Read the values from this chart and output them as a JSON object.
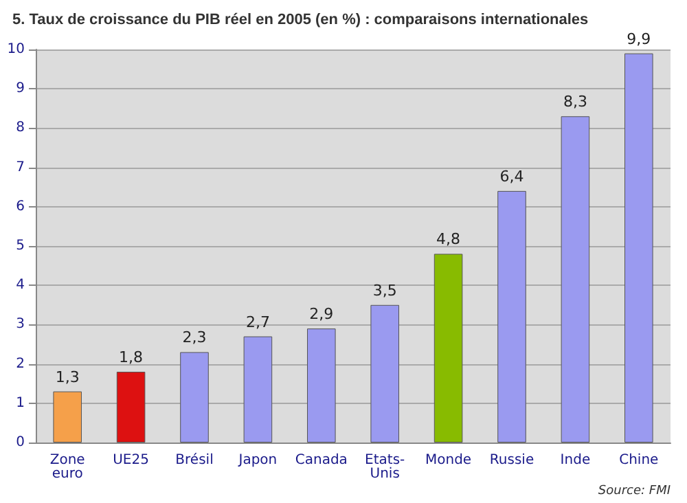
{
  "chart_data": {
    "type": "bar",
    "title": "5. Taux de croissance du PIB réel en 2005 (en %) : comparaisons internationales",
    "categories": [
      "Zone euro",
      "UE25",
      "Brésil",
      "Japon",
      "Canada",
      "Etats-Unis",
      "Monde",
      "Russie",
      "Inde",
      "Chine"
    ],
    "values": [
      1.3,
      1.8,
      2.3,
      2.7,
      2.9,
      3.5,
      4.8,
      6.4,
      8.3,
      9.9
    ],
    "colors": [
      "#f5a04a",
      "#dd1111",
      "#9a9af0",
      "#9a9af0",
      "#9a9af0",
      "#9a9af0",
      "#88bb00",
      "#9a9af0",
      "#9a9af0",
      "#9a9af0"
    ],
    "value_labels": [
      "1,3",
      "1,8",
      "2,3",
      "2,7",
      "2,9",
      "3,5",
      "4,8",
      "6,4",
      "8,3",
      "9,9"
    ],
    "ylim": [
      0,
      10
    ],
    "yticks": [
      0,
      1,
      2,
      3,
      4,
      5,
      6,
      7,
      8,
      9,
      10
    ],
    "grid": "y",
    "annotations": [
      "Source: FMI"
    ]
  }
}
